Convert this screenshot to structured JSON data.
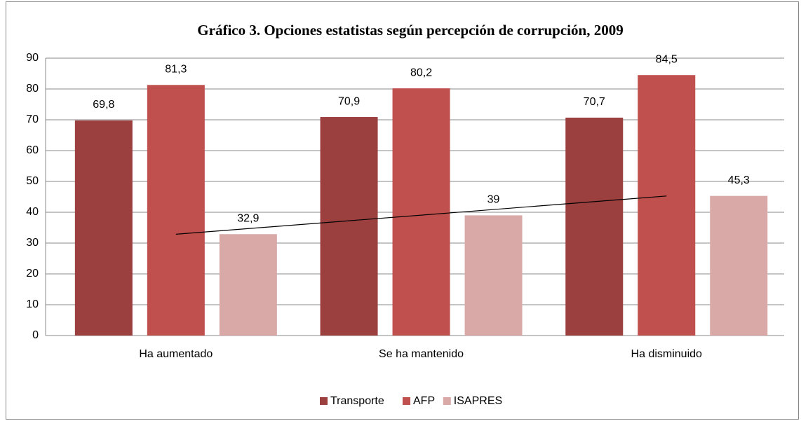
{
  "chart_data": {
    "type": "bar",
    "title": "Gráfico 3. Opciones estatistas según percepción de corrupción, 2009",
    "categories": [
      "Ha aumentado",
      "Se ha mantenido",
      "Ha disminuido"
    ],
    "series": [
      {
        "name": "Transporte",
        "color": "#9c3f3f",
        "values": [
          69.8,
          70.9,
          70.7
        ],
        "value_labels": [
          "69,8",
          "70,9",
          "70,7"
        ]
      },
      {
        "name": "AFP",
        "color": "#c0504d",
        "values": [
          81.3,
          80.2,
          84.5
        ],
        "value_labels": [
          "81,3",
          "80,2",
          "84,5"
        ]
      },
      {
        "name": "ISAPRES",
        "color": "#d9a9a8",
        "values": [
          32.9,
          39,
          45.3
        ],
        "value_labels": [
          "32,9",
          "39",
          "45,3"
        ],
        "trendline": true
      }
    ],
    "ylim": [
      0,
      90
    ],
    "yticks": [
      0,
      10,
      20,
      30,
      40,
      50,
      60,
      70,
      80,
      90
    ],
    "grid": true,
    "legend": "bottom"
  }
}
